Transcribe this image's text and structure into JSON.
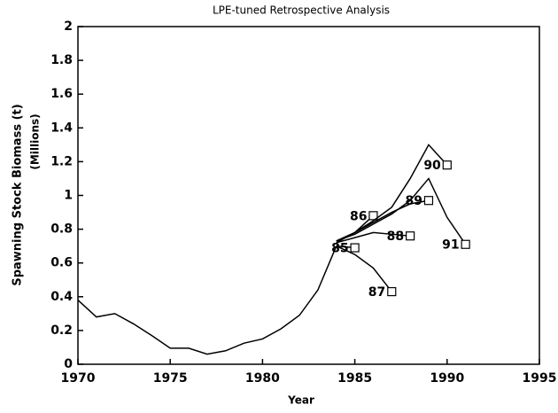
{
  "chart_data": {
    "type": "line",
    "title": "LPE-tuned Retrospective Analysis",
    "xlabel": "Year",
    "ylabel": "Spawning Stock Biomass (t)",
    "ylabel2": "(Millions)",
    "xlim": [
      1970,
      1995
    ],
    "xticks": [
      1970,
      1975,
      1980,
      1985,
      1990,
      1995
    ],
    "ylim": [
      0,
      2
    ],
    "yticks": [
      0,
      0.2,
      0.4,
      0.6,
      0.8,
      1,
      1.2,
      1.4,
      1.6,
      1.8,
      2
    ],
    "color": "#000000",
    "series": [
      {
        "x": [
          1970,
          1971,
          1972,
          1973,
          1974,
          1975,
          1976,
          1977,
          1978,
          1979,
          1980,
          1981,
          1982,
          1983,
          1984
        ],
        "values": [
          0.38,
          0.28,
          0.3,
          0.24,
          0.17,
          0.095,
          0.095,
          0.06,
          0.08,
          0.125,
          0.15,
          0.21,
          0.29,
          0.44,
          0.7
        ]
      },
      {
        "name": "85",
        "x": [
          1984,
          1985
        ],
        "values": [
          0.7,
          0.69
        ]
      },
      {
        "name": "86",
        "x": [
          1984,
          1985,
          1986
        ],
        "values": [
          0.72,
          0.78,
          0.88
        ]
      },
      {
        "name": "87",
        "x": [
          1984,
          1985,
          1986,
          1987
        ],
        "values": [
          0.7,
          0.65,
          0.57,
          0.43
        ]
      },
      {
        "name": "88",
        "x": [
          1984,
          1985,
          1986,
          1987,
          1988
        ],
        "values": [
          0.72,
          0.75,
          0.78,
          0.77,
          0.76
        ]
      },
      {
        "name": "89",
        "x": [
          1984,
          1985,
          1986,
          1987,
          1988,
          1989
        ],
        "values": [
          0.73,
          0.78,
          0.84,
          0.9,
          0.95,
          0.97
        ]
      },
      {
        "name": "90",
        "x": [
          1984,
          1985,
          1986,
          1987,
          1988,
          1989,
          1990
        ],
        "values": [
          0.73,
          0.78,
          0.85,
          0.93,
          1.1,
          1.3,
          1.18
        ]
      },
      {
        "name": "91",
        "x": [
          1984,
          1985,
          1986,
          1987,
          1988,
          1989,
          1990,
          1991
        ],
        "values": [
          0.73,
          0.77,
          0.83,
          0.89,
          0.97,
          1.1,
          0.87,
          0.71
        ]
      }
    ]
  }
}
